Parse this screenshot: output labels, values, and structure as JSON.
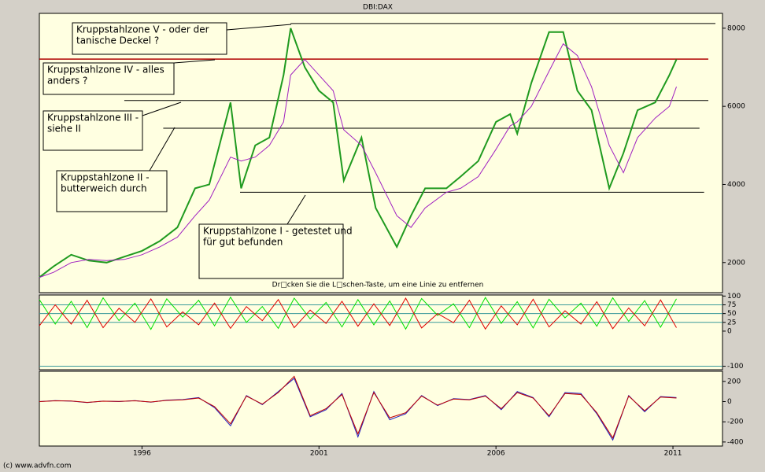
{
  "chart_data": [
    {
      "type": "line",
      "title": "DBI:DAX",
      "note": "Dr□cken Sie die L□schen-Taste, um eine Linie zu entfernen",
      "x": [
        1993.1,
        1993.5,
        1994.0,
        1994.5,
        1995.0,
        1995.5,
        1996.0,
        1996.5,
        1997.0,
        1997.5,
        1997.9,
        1998.5,
        1998.8,
        1999.2,
        1999.6,
        2000.0,
        2000.2,
        2000.6,
        2001.0,
        2001.4,
        2001.7,
        2002.2,
        2002.6,
        2003.2,
        2003.6,
        2004.0,
        2004.6,
        2005.0,
        2005.5,
        2006.0,
        2006.4,
        2006.6,
        2007.0,
        2007.5,
        2007.9,
        2008.3,
        2008.7,
        2009.2,
        2009.6,
        2010.0,
        2010.5,
        2010.9,
        2011.1
      ],
      "series": [
        {
          "color": "#1f9a1f",
          "values": [
            1620,
            1900,
            2200,
            2050,
            2000,
            2150,
            2300,
            2550,
            2900,
            3900,
            4000,
            6100,
            3900,
            5000,
            5200,
            6800,
            8000,
            7000,
            6400,
            6100,
            4100,
            5200,
            3400,
            2400,
            3200,
            3900,
            3900,
            4200,
            4600,
            5600,
            5800,
            5300,
            6600,
            7900,
            7900,
            6400,
            5900,
            3900,
            4800,
            5900,
            6100,
            6800,
            7200
          ]
        },
        {
          "color": "#a020c0",
          "values": [
            1620,
            1750,
            2000,
            2080,
            2050,
            2080,
            2200,
            2400,
            2650,
            3200,
            3600,
            4700,
            4600,
            4700,
            5000,
            5600,
            6800,
            7200,
            6800,
            6400,
            5400,
            5000,
            4300,
            3200,
            2900,
            3400,
            3800,
            3900,
            4200,
            4900,
            5500,
            5600,
            6000,
            6900,
            7600,
            7300,
            6500,
            5000,
            4300,
            5200,
            5700,
            6000,
            6500
          ]
        }
      ],
      "levels": [
        {
          "value": 8120,
          "x": [
            2000.2,
            2012.2
          ],
          "color": "#000000"
        },
        {
          "value": 7210,
          "x": [
            1993.1,
            2012.0
          ],
          "color": "#b00000"
        },
        {
          "value": 6150,
          "x": [
            1995.5,
            2012.0
          ],
          "color": "#000000"
        },
        {
          "value": 5440,
          "x": [
            1996.6,
            2011.75
          ],
          "color": "#000000"
        },
        {
          "value": 3800,
          "x": [
            1998.77,
            2011.88
          ],
          "color": "#000000"
        }
      ],
      "annotations": [
        [
          "Kruppstahlzone V - oder der",
          "tanische Deckel ?"
        ],
        [
          "Kruppstahlzone IV - alles",
          "anders ?"
        ],
        [
          "Kruppstahlzone III -",
          "siehe II"
        ],
        [
          "Kruppstahlzone II -",
          "butterweich durch"
        ],
        [
          "Kruppstahlzone I - getestet und",
          "für gut befunden"
        ]
      ],
      "xlim": [
        1993.1,
        2012.4
      ],
      "ylim": [
        1230,
        8380
      ],
      "yticks": [
        2000,
        4000,
        6000,
        8000
      ]
    },
    {
      "type": "line",
      "x": [
        1993.1,
        1993.55,
        1994.0,
        1994.45,
        1994.9,
        1995.35,
        1995.8,
        1996.25,
        1996.7,
        1997.15,
        1997.6,
        1998.05,
        1998.5,
        1998.95,
        1999.4,
        1999.85,
        2000.3,
        2000.75,
        2001.2,
        2001.65,
        2002.1,
        2002.55,
        2003.0,
        2003.45,
        2003.9,
        2004.35,
        2004.8,
        2005.25,
        2005.7,
        2006.15,
        2006.6,
        2007.05,
        2007.5,
        2007.95,
        2008.4,
        2008.85,
        2009.3,
        2009.75,
        2010.2,
        2010.65,
        2011.1
      ],
      "series": [
        {
          "color": "#00e000",
          "values": [
            90,
            20,
            85,
            10,
            95,
            30,
            80,
            5,
            92,
            40,
            88,
            15,
            97,
            25,
            70,
            8,
            94,
            35,
            82,
            12,
            90,
            18,
            86,
            6,
            93,
            45,
            78,
            10,
            96,
            22,
            84,
            9,
            91,
            38,
            80,
            14,
            95,
            28,
            87,
            11,
            92
          ]
        },
        {
          "color": "#e00000",
          "values": [
            15,
            75,
            20,
            88,
            10,
            65,
            25,
            92,
            12,
            55,
            18,
            80,
            8,
            70,
            30,
            90,
            10,
            60,
            22,
            85,
            14,
            78,
            16,
            94,
            9,
            50,
            24,
            88,
            6,
            72,
            18,
            91,
            12,
            58,
            20,
            84,
            7,
            66,
            15,
            89,
            10
          ]
        }
      ],
      "xlim": [
        1993.1,
        2012.4
      ],
      "ylim": [
        -110,
        103
      ],
      "yticks": [
        100,
        75,
        50,
        25,
        0,
        -100
      ],
      "grid_color": "#3a9a9a"
    },
    {
      "type": "line",
      "x": [
        1993.1,
        1993.55,
        1994.0,
        1994.45,
        1994.9,
        1995.35,
        1995.8,
        1996.25,
        1996.7,
        1997.15,
        1997.6,
        1998.05,
        1998.5,
        1998.95,
        1999.4,
        1999.85,
        2000.3,
        2000.75,
        2001.2,
        2001.65,
        2002.1,
        2002.55,
        2003.0,
        2003.45,
        2003.9,
        2004.35,
        2004.8,
        2005.25,
        2005.7,
        2006.15,
        2006.6,
        2007.05,
        2007.5,
        2007.95,
        2008.4,
        2008.85,
        2009.3,
        2009.75,
        2010.2,
        2010.65,
        2011.1
      ],
      "series": [
        {
          "color": "#2020c0",
          "values": [
            0,
            10,
            5,
            -10,
            5,
            0,
            10,
            -5,
            15,
            20,
            40,
            -60,
            -240,
            60,
            -30,
            100,
            230,
            -150,
            -80,
            80,
            -350,
            100,
            -180,
            -120,
            60,
            -40,
            30,
            20,
            60,
            -80,
            100,
            40,
            -150,
            90,
            80,
            -120,
            -380,
            60,
            -100,
            50,
            40
          ]
        },
        {
          "color": "#c00000",
          "values": [
            0,
            8,
            6,
            -8,
            4,
            2,
            8,
            -4,
            12,
            18,
            35,
            -50,
            -220,
            55,
            -25,
            90,
            250,
            -140,
            -70,
            70,
            -320,
            90,
            -160,
            -110,
            55,
            -35,
            25,
            18,
            55,
            -70,
            90,
            35,
            -140,
            80,
            70,
            -110,
            -360,
            55,
            -90,
            45,
            35
          ]
        }
      ],
      "xlim": [
        1993.1,
        2012.4
      ],
      "ylim": [
        -440,
        300
      ],
      "yticks": [
        200,
        0,
        -200,
        -400
      ],
      "xticks": [
        1996,
        2001,
        2006,
        2011
      ]
    }
  ],
  "footer": "(c) www.advfn.com"
}
